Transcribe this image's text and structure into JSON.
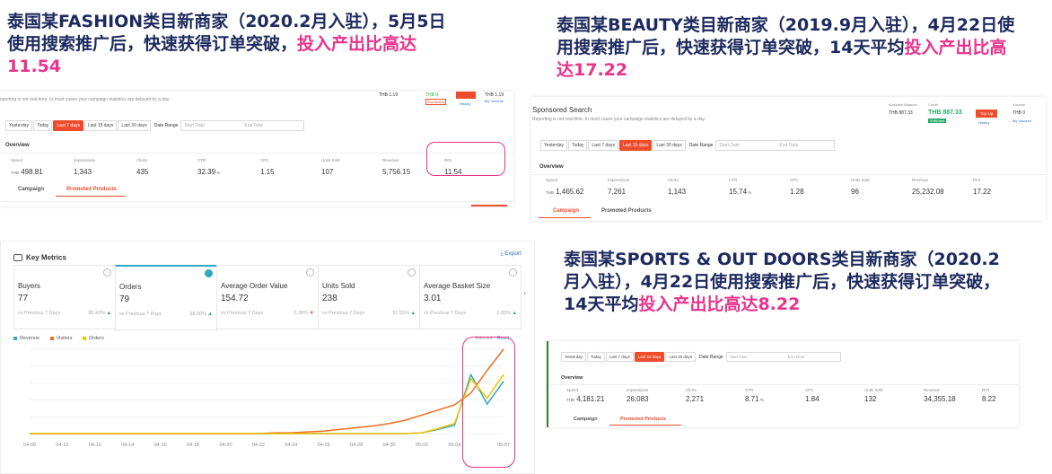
{
  "headings": {
    "fashion": {
      "text": "泰国某FASHION类目新商家（2020.2月入驻），5月5日使用搜索推广后，快速获得订单突破，",
      "highlight": "投入产出比高达11.54"
    },
    "beauty": {
      "text": "泰国某BEAUTY类目新商家（2019.9月入驻），4月22日使用搜索推广后，快速获得订单突破，14天平均",
      "highlight": "投入产出比高达17.22"
    },
    "sports": {
      "text": "泰国某SPORTS & OUT DOORS类目新商家（2020.2月入驻），4月22日使用搜索推广后，快速获得订单突破，14天平均",
      "highlight": "投入产出比高达8.22"
    }
  },
  "date_buttons": [
    "Yesterday",
    "Today",
    "Last 7 days",
    "Last 15 days",
    "Last 30 days"
  ],
  "date_range": {
    "label": "Date Range",
    "start": "Start Date",
    "end": "End Date"
  },
  "overview_title": "Overview",
  "metric_labels": [
    "Spend",
    "Impressions",
    "Clicks",
    "CTR",
    "CPC",
    "Units Sold",
    "Revenue",
    "ROI"
  ],
  "tabs": [
    "Campaign",
    "Promoted Products"
  ],
  "currency": "THB",
  "panel1": {
    "notice": "eporting is not real-time. In most cases your campaign statistics are delayed by a day.",
    "wallet": {
      "v1": "THB 1.19",
      "v2": "THB 0",
      "v2note": "Insufficient",
      "v3": "THB 1.19",
      "history": "History",
      "voucher": "My Voucher"
    },
    "active_date": "Last 7 days",
    "values": [
      "498.81",
      "1,343",
      "435",
      "32.39",
      "1.15",
      "107",
      "5,756.15",
      "11.54"
    ]
  },
  "panel2": {
    "title": "Sponsored Search",
    "notice": "Reporting is not real-time. In most cases your campaign statistics are delayed by a day.",
    "wallet": {
      "label1": "Available Balance",
      "v1": "THB 887.33",
      "label2": "Credit",
      "v2": "THB 887.33",
      "v2note": "Sufficient",
      "topup": "Top Up",
      "history": "History",
      "label3": "Voucher",
      "v3": "THB 0",
      "voucher": "My Voucher"
    },
    "active_date": "Last 15 days",
    "values": [
      "1,465.62",
      "7,261",
      "1,143",
      "15.74",
      "1.28",
      "96",
      "25,232.08",
      "17.22"
    ]
  },
  "panel3": {
    "active_date": "Last 15 days",
    "values": [
      "4,181.21",
      "26,083",
      "2,271",
      "8.71",
      "1.84",
      "132",
      "34,355.18",
      "8.22"
    ]
  },
  "key_metrics": {
    "title": "Key Metrics",
    "export": "Export",
    "cards": [
      {
        "title": "Buyers",
        "value": "77",
        "prev": "vs Previous 7 Days",
        "change": "80.43%"
      },
      {
        "title": "Orders",
        "value": "79",
        "prev": "vs Previous 7 Days",
        "change": "58.00%"
      },
      {
        "title": "Average Order Value",
        "value": "154.72",
        "prev": "vs Previous 7 Days",
        "change": "0.35%"
      },
      {
        "title": "Units Sold",
        "value": "238",
        "prev": "vs Previous 7 Days",
        "change": "51.55%"
      },
      {
        "title": "Average Basket Size",
        "value": "3.01",
        "prev": "vs Previous 7 Days",
        "change": "2.82%"
      }
    ],
    "legend": [
      "Revenue",
      "Visitors",
      "Orders"
    ],
    "chart_right_labels": [
      "Selected",
      "Reset"
    ]
  },
  "colors": {
    "accent": "#ee4d2d",
    "navy": "#1d2a5e",
    "pink": "#e8338b",
    "teal": "#2ea7c0",
    "orange": "#ee6d1d",
    "yellow": "#f2c300"
  },
  "chart_data": {
    "type": "line",
    "x": [
      "04-08",
      "04-09",
      "04-10",
      "04-11",
      "04-12",
      "04-13",
      "04-14",
      "04-15",
      "04-16",
      "04-17",
      "04-18",
      "04-19",
      "04-20",
      "04-21",
      "04-22",
      "04-23",
      "04-24",
      "04-25",
      "04-26",
      "04-27",
      "04-28",
      "04-29",
      "04-30",
      "05-01",
      "05-02",
      "05-03",
      "05-04",
      "05-05",
      "05-06",
      "05-07"
    ],
    "tick_labels": [
      "04-08",
      "04-10",
      "04-12",
      "04-14",
      "04-16",
      "04-18",
      "04-20",
      "04-22",
      "04-24",
      "04-26",
      "04-28",
      "04-30",
      "05-02",
      "05-04",
      "05-07"
    ],
    "series": [
      {
        "name": "Revenue",
        "color": "#2ea7c0",
        "values": [
          0,
          0,
          0,
          0,
          0,
          0,
          0,
          0,
          0,
          0,
          0,
          0,
          0,
          0,
          0,
          0,
          0,
          0,
          0,
          0,
          0,
          0,
          0,
          0,
          1,
          5,
          10,
          70,
          35,
          62
        ]
      },
      {
        "name": "Visitors",
        "color": "#ee6d1d",
        "values": [
          0,
          0,
          0,
          0,
          0,
          0,
          0,
          0,
          0,
          0,
          0,
          0,
          0,
          0,
          0,
          1,
          1,
          2,
          3,
          5,
          7,
          9,
          12,
          16,
          22,
          28,
          34,
          48,
          75,
          100
        ]
      },
      {
        "name": "Orders",
        "color": "#f2c300",
        "values": [
          0,
          0,
          0,
          0,
          0,
          0,
          0,
          0,
          0,
          0,
          0,
          0,
          0,
          0,
          0,
          0,
          0,
          0,
          0,
          0,
          0,
          0,
          0,
          0,
          1,
          6,
          12,
          65,
          42,
          70
        ]
      }
    ],
    "legend": "top-left",
    "grid": true
  }
}
